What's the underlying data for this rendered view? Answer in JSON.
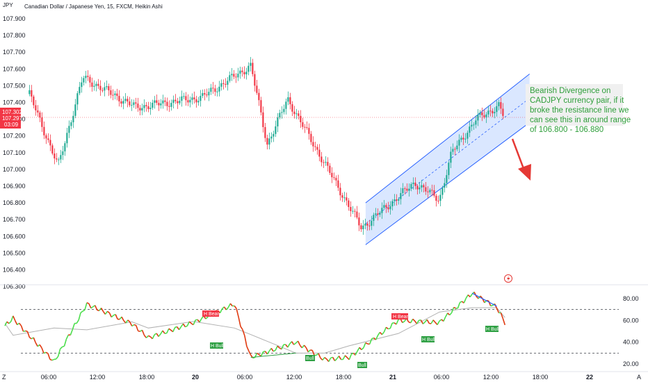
{
  "header": {
    "axis_unit": "JPY",
    "title": "Canadian Dollar / Japanese Yen, 15, FXCM, Heikin Ashi"
  },
  "colors": {
    "up": "#22ab94",
    "down": "#f23645",
    "channel_fill": "#bbd3ff",
    "channel_line": "#2962ff",
    "annotation": "#2e9e3a",
    "arrow": "#e53935",
    "rsi_up": "#4cde4c",
    "rsi_down": "#e03a10"
  },
  "price_scale": {
    "ticks": [
      "107.900",
      "107.800",
      "107.700",
      "107.600",
      "107.500",
      "107.400",
      "107.300",
      "107.200",
      "107.100",
      "107.000",
      "106.900",
      "106.800",
      "106.700",
      "106.600",
      "106.500",
      "106.400",
      "106.300"
    ],
    "last_price": "107.302",
    "last_price_2": "107.297",
    "countdown": "03:09"
  },
  "annotation": {
    "text_lines": [
      "Bearish Divergence on",
      "CADJPY currency pair, if it",
      "broke the resistance line we",
      "can see this in around range",
      "of 106.800 - 106.880"
    ]
  },
  "rsi_scale": {
    "ticks": [
      "80.00",
      "60.00",
      "40.00",
      "20.00"
    ]
  },
  "rsi_labels": {
    "h_bear_1": "H Bear",
    "h_bull_1": "H Bull",
    "bull_1": "Bull",
    "bull_2": "Bull",
    "h_bear_2": "H Bear",
    "h_bull_2": "H Bull",
    "h_bull_3": "H Bull"
  },
  "time_axis": {
    "ticks": [
      "06:00",
      "12:00",
      "18:00",
      "20",
      "06:00",
      "12:00",
      "18:00",
      "21",
      "06:00",
      "12:00",
      "18:00",
      "22"
    ],
    "left_icon": "Z",
    "right_icon": "A"
  },
  "chart_data": {
    "type": "candlestick",
    "title": "Canadian Dollar / Japanese Yen, 15, FXCM, Heikin Ashi",
    "ylim": [
      106.25,
      107.95
    ],
    "key_points": [
      {
        "t": "19 03:00",
        "price": 107.45
      },
      {
        "t": "19 06:30",
        "price": 107.02
      },
      {
        "t": "19 09:30",
        "price": 107.55
      },
      {
        "t": "19 16:00",
        "price": 107.37
      },
      {
        "t": "20 00:00",
        "price": 107.43
      },
      {
        "t": "20 06:00",
        "price": 107.62
      },
      {
        "t": "20 08:00",
        "price": 107.15
      },
      {
        "t": "20 10:30",
        "price": 107.42
      },
      {
        "t": "20 19:30",
        "price": 106.65
      },
      {
        "t": "21 02:00",
        "price": 106.92
      },
      {
        "t": "21 05:00",
        "price": 106.82
      },
      {
        "t": "21 06:30",
        "price": 107.1
      },
      {
        "t": "21 09:30",
        "price": 107.3
      },
      {
        "t": "21 12:15",
        "price": 107.38
      },
      {
        "t": "21 13:00",
        "price": 107.3
      }
    ],
    "channel": {
      "lower": [
        {
          "t": "20 20:00",
          "price": 106.55
        },
        {
          "t": "21 16:00",
          "price": 107.28
        }
      ],
      "upper": [
        {
          "t": "20 20:00",
          "price": 106.8
        },
        {
          "t": "21 16:00",
          "price": 107.57
        }
      ]
    },
    "rsi": {
      "ylim": [
        15,
        88
      ],
      "levels": [
        70,
        30
      ],
      "key_points": [
        {
          "t": "19 00:00",
          "value": 55
        },
        {
          "t": "19 01:00",
          "value": 62
        },
        {
          "t": "19 06:00",
          "value": 22
        },
        {
          "t": "19 10:00",
          "value": 75
        },
        {
          "t": "19 15:30",
          "value": 57
        },
        {
          "t": "19 17:30",
          "value": 44
        },
        {
          "t": "19 23:00",
          "value": 58
        },
        {
          "t": "20 04:00",
          "value": 75
        },
        {
          "t": "20 06:00",
          "value": 26
        },
        {
          "t": "20 11:30",
          "value": 40
        },
        {
          "t": "20 15:00",
          "value": 24
        },
        {
          "t": "20 18:00",
          "value": 26
        },
        {
          "t": "21 00:00",
          "value": 60
        },
        {
          "t": "21 05:00",
          "value": 58
        },
        {
          "t": "21 09:00",
          "value": 85
        },
        {
          "t": "21 12:00",
          "value": 72
        },
        {
          "t": "21 13:00",
          "value": 58
        }
      ]
    }
  }
}
